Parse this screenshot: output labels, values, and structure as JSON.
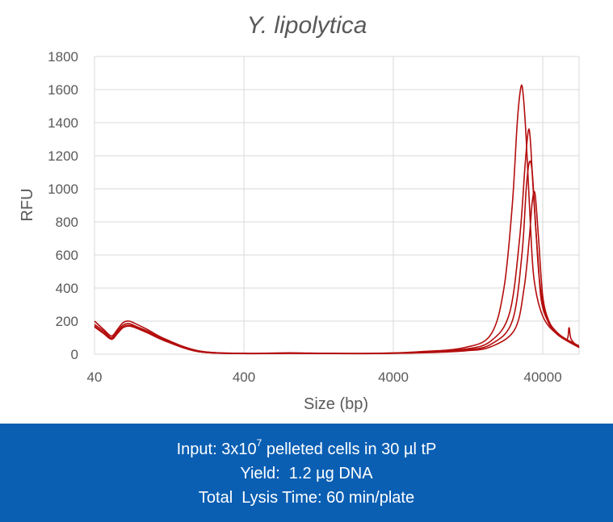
{
  "chart_data": {
    "type": "line",
    "title": "Y. lipolytica",
    "xlabel": "Size (bp)",
    "ylabel": "RFU",
    "x_scale": "log",
    "xlim": [
      40,
      70000
    ],
    "ylim": [
      0,
      1800
    ],
    "x_ticks": [
      {
        "value": 40,
        "label": "40"
      },
      {
        "value": 400,
        "label": "400"
      },
      {
        "value": 4000,
        "label": "4000"
      },
      {
        "value": 40000,
        "label": "40000"
      }
    ],
    "y_ticks": [
      {
        "value": 0,
        "label": "0"
      },
      {
        "value": 200,
        "label": "200"
      },
      {
        "value": 400,
        "label": "400"
      },
      {
        "value": 600,
        "label": "600"
      },
      {
        "value": 800,
        "label": "800"
      },
      {
        "value": 1000,
        "label": "1000"
      },
      {
        "value": 1200,
        "label": "1200"
      },
      {
        "value": 1400,
        "label": "1400"
      },
      {
        "value": 1600,
        "label": "1600"
      },
      {
        "value": 1800,
        "label": "1800"
      }
    ],
    "grid": true,
    "legend": "none",
    "line_color": "#b40d0d",
    "series": [
      {
        "x": [
          40,
          46,
          52,
          57,
          62,
          68,
          75,
          90,
          120,
          200,
          400,
          800,
          1500,
          3000,
          6000,
          12000,
          18000,
          22000,
          25000,
          27000,
          28500,
          29500,
          31000,
          33000,
          35000,
          40000,
          50000,
          70000
        ],
        "y": [
          200,
          150,
          110,
          150,
          190,
          200,
          185,
          150,
          90,
          20,
          5,
          8,
          5,
          5,
          15,
          40,
          120,
          400,
          900,
          1400,
          1610,
          1580,
          1300,
          800,
          450,
          230,
          120,
          40
        ]
      },
      {
        "x": [
          40,
          46,
          52,
          57,
          62,
          68,
          75,
          90,
          120,
          200,
          400,
          800,
          1500,
          3000,
          6000,
          12000,
          18000,
          24000,
          28000,
          30500,
          32000,
          33000,
          34500,
          37000,
          40000,
          50000,
          70000
        ],
        "y": [
          180,
          140,
          100,
          140,
          175,
          185,
          170,
          140,
          85,
          18,
          5,
          6,
          5,
          5,
          12,
          30,
          80,
          250,
          700,
          1150,
          1350,
          1300,
          1000,
          600,
          280,
          130,
          50
        ]
      },
      {
        "x": [
          40,
          46,
          52,
          57,
          62,
          68,
          75,
          90,
          120,
          200,
          400,
          800,
          1500,
          3000,
          6000,
          12000,
          18000,
          25000,
          29000,
          31000,
          32500,
          34000,
          36000,
          38000,
          42000,
          50000,
          70000
        ],
        "y": [
          170,
          130,
          95,
          130,
          165,
          175,
          165,
          135,
          80,
          15,
          4,
          6,
          4,
          4,
          10,
          25,
          60,
          200,
          600,
          1000,
          1160,
          1100,
          750,
          450,
          230,
          120,
          45
        ]
      },
      {
        "x": [
          40,
          46,
          52,
          57,
          62,
          68,
          75,
          90,
          120,
          200,
          400,
          800,
          1500,
          3000,
          6000,
          12000,
          18000,
          26000,
          30000,
          32500,
          34000,
          35500,
          37500,
          40000,
          44000,
          50000,
          58000,
          60000,
          62000,
          70000
        ],
        "y": [
          165,
          125,
          90,
          125,
          160,
          170,
          160,
          130,
          78,
          15,
          4,
          5,
          4,
          4,
          8,
          20,
          45,
          150,
          400,
          700,
          920,
          970,
          700,
          350,
          200,
          130,
          90,
          160,
          90,
          40
        ]
      }
    ]
  },
  "info": {
    "line1_prefix": "Input: 3x10",
    "line1_sup": "7",
    "line1_suffix": " pelleted cells in 30 µl tP",
    "line2": "Yield:  1.2 µg DNA",
    "line3": "Total  Lysis Time: 60 min/plate"
  },
  "colors": {
    "info_background": "#0a5fb3",
    "info_text": "#ffffff",
    "series": "#b40d0d"
  }
}
